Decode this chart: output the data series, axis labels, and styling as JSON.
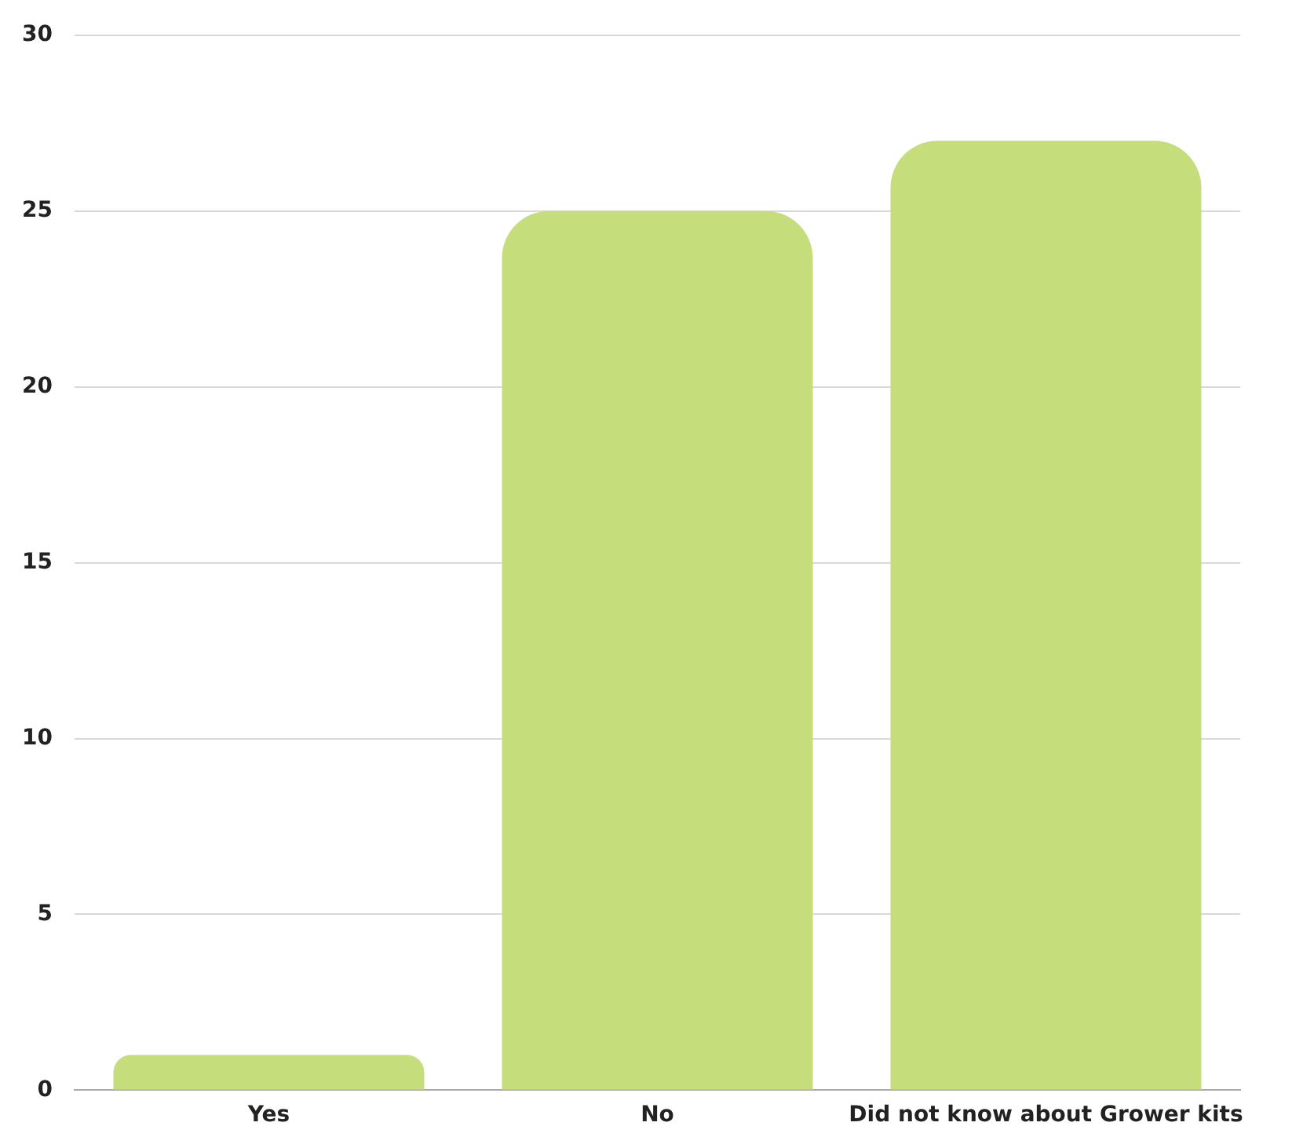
{
  "chart_data": {
    "type": "bar",
    "categories": [
      "Yes",
      "No",
      "Did not know about Grower kits"
    ],
    "values": [
      1,
      25,
      27
    ],
    "color": "#c5dd7a",
    "ylim": [
      0,
      30
    ],
    "yticks": [
      0,
      5,
      10,
      15,
      20,
      25,
      30
    ],
    "grid": "y"
  }
}
